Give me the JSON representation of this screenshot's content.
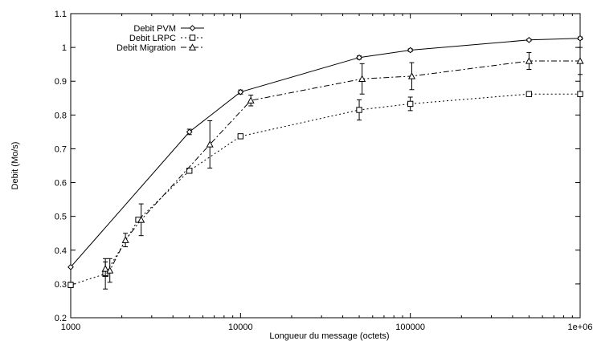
{
  "chart_data": {
    "type": "line",
    "title": "",
    "xlabel": "Longueur du message (octets)",
    "ylabel": "Debit (Mo/s)",
    "x_scale": "log",
    "xlim": [
      1000,
      1000000
    ],
    "ylim": [
      0.2,
      1.1
    ],
    "x_ticks": [
      {
        "value": 1000,
        "label": "1000"
      },
      {
        "value": 10000,
        "label": "10000"
      },
      {
        "value": 100000,
        "label": "100000"
      },
      {
        "value": 1000000,
        "label": "1e+06"
      }
    ],
    "y_ticks": [
      {
        "value": 0.2,
        "label": "0.2"
      },
      {
        "value": 0.3,
        "label": "0.3"
      },
      {
        "value": 0.4,
        "label": "0.4"
      },
      {
        "value": 0.5,
        "label": "0.5"
      },
      {
        "value": 0.6,
        "label": "0.6"
      },
      {
        "value": 0.7,
        "label": "0.7"
      },
      {
        "value": 0.8,
        "label": "0.8"
      },
      {
        "value": 0.9,
        "label": "0.9"
      },
      {
        "value": 1.0,
        "label": "1"
      },
      {
        "value": 1.1,
        "label": "1.1"
      }
    ],
    "grid": false,
    "legend_position": "top-left",
    "series": [
      {
        "name": "Debit PVM",
        "color": "#000000",
        "line_style": "solid",
        "marker": "diamond",
        "points": [
          {
            "x": 1000,
            "y": 0.35
          },
          {
            "x": 5000,
            "y": 0.75,
            "err": 0.008
          },
          {
            "x": 10000,
            "y": 0.868,
            "err": 0.006
          },
          {
            "x": 50000,
            "y": 0.97,
            "err": 0.005
          },
          {
            "x": 100000,
            "y": 0.992,
            "err": 0.004
          },
          {
            "x": 500000,
            "y": 1.022,
            "err": 0.003
          },
          {
            "x": 1000000,
            "y": 1.027,
            "err": 0.004
          }
        ]
      },
      {
        "name": "Debit LRPC",
        "color": "#000000",
        "line_style": "dotted",
        "marker": "square",
        "points": [
          {
            "x": 1000,
            "y": 0.297,
            "err": 0.008
          },
          {
            "x": 1600,
            "y": 0.33,
            "err": 0.045
          },
          {
            "x": 2500,
            "y": 0.49
          },
          {
            "x": 5000,
            "y": 0.635,
            "err": 0.006
          },
          {
            "x": 10000,
            "y": 0.737,
            "err": 0.005
          },
          {
            "x": 50000,
            "y": 0.815,
            "err": 0.03
          },
          {
            "x": 100000,
            "y": 0.833,
            "err": 0.02
          },
          {
            "x": 500000,
            "y": 0.862,
            "err": 0.005
          },
          {
            "x": 1000000,
            "y": 0.862,
            "err": 0.005
          }
        ]
      },
      {
        "name": "Debit Migration",
        "color": "#000000",
        "line_style": "dashdot",
        "marker": "triangle",
        "points": [
          {
            "x": 1600,
            "y": 0.345,
            "err": 0.02
          },
          {
            "x": 1700,
            "y": 0.34,
            "err": 0.035
          },
          {
            "x": 2100,
            "y": 0.43,
            "err": 0.02
          },
          {
            "x": 2600,
            "y": 0.49,
            "err": 0.047
          },
          {
            "x": 6600,
            "y": 0.713,
            "err": 0.07
          },
          {
            "x": 11500,
            "y": 0.843,
            "err": 0.016
          },
          {
            "x": 52000,
            "y": 0.907,
            "err": 0.045
          },
          {
            "x": 102000,
            "y": 0.915,
            "err": 0.04
          },
          {
            "x": 500000,
            "y": 0.96,
            "err": 0.025
          },
          {
            "x": 1000000,
            "y": 0.96,
            "err": 0.04
          }
        ]
      }
    ]
  }
}
